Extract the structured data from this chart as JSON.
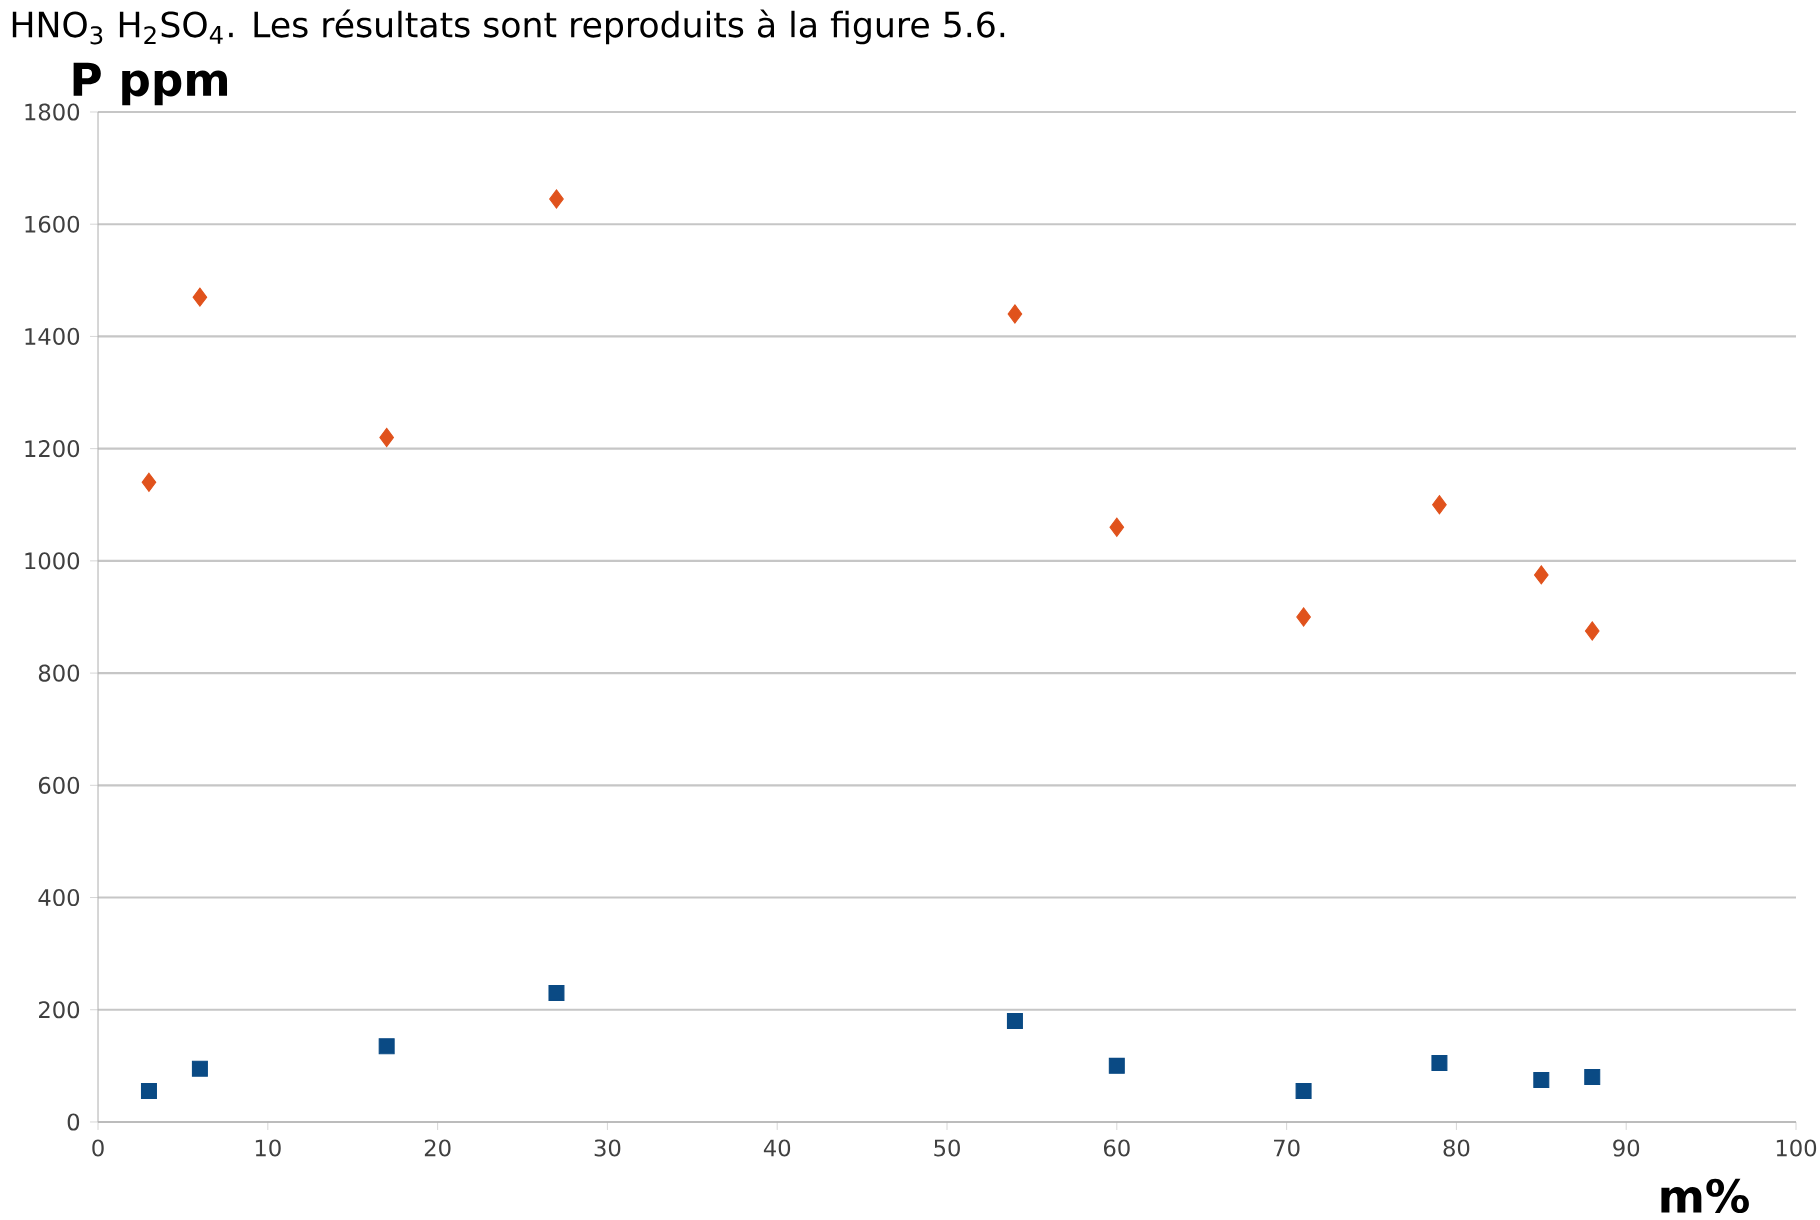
{
  "chart_data": {
    "type": "scatter",
    "title": "P ppm",
    "xlabel": "m%",
    "annotations": [
      "HNO$_{3}$ H$_{2}$SO$_{4}$. Les résultats sont reproduits à la figure 5.6."
    ],
    "x": [
      3,
      6,
      17,
      27,
      54,
      60,
      71,
      79,
      85,
      88
    ],
    "series": [
      {
        "color": "#e0521c",
        "marker": "diamond",
        "values": [
          1140,
          1470,
          1220,
          1645,
          1440,
          1060,
          900,
          1100,
          975,
          875
        ]
      },
      {
        "color": "#0a4a84",
        "marker": "square",
        "values": [
          55,
          95,
          135,
          230,
          180,
          100,
          55,
          105,
          75,
          80
        ]
      }
    ],
    "xlim": [
      0,
      100
    ],
    "xticks": [
      0,
      10,
      20,
      30,
      40,
      50,
      60,
      70,
      80,
      90,
      100
    ],
    "ylim": [
      0,
      1800
    ],
    "yticks": [
      0,
      200,
      400,
      600,
      800,
      1000,
      1200,
      1400,
      1600,
      1800
    ],
    "grid": "y"
  }
}
